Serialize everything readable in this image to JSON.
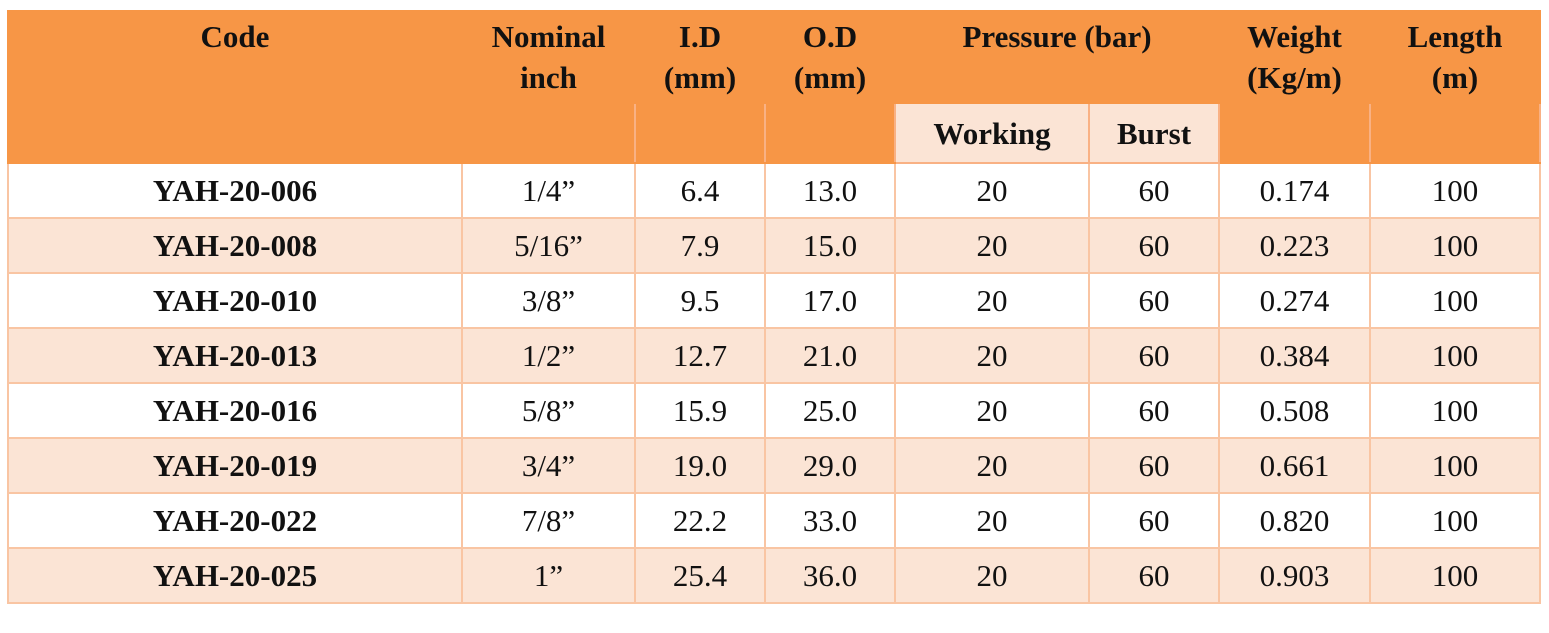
{
  "header": {
    "code": "Code",
    "nominal_1": "Nominal",
    "nominal_2": "inch",
    "id_1": "I.D",
    "id_2": "(mm)",
    "od_1": "O.D",
    "od_2": "(mm)",
    "pressure": "Pressure (bar)",
    "working": "Working",
    "burst": "Burst",
    "weight_1": "Weight",
    "weight_2": "(Kg/m)",
    "length_1": "Length",
    "length_2": "(m)"
  },
  "rows": [
    {
      "code": "YAH-20-006",
      "nominal": "1/4”",
      "id": "6.4",
      "od": "13.0",
      "working": "20",
      "burst": "60",
      "weight": "0.174",
      "length": "100"
    },
    {
      "code": "YAH-20-008",
      "nominal": "5/16”",
      "id": "7.9",
      "od": "15.0",
      "working": "20",
      "burst": "60",
      "weight": "0.223",
      "length": "100"
    },
    {
      "code": "YAH-20-010",
      "nominal": "3/8”",
      "id": "9.5",
      "od": "17.0",
      "working": "20",
      "burst": "60",
      "weight": "0.274",
      "length": "100"
    },
    {
      "code": "YAH-20-013",
      "nominal": "1/2”",
      "id": "12.7",
      "od": "21.0",
      "working": "20",
      "burst": "60",
      "weight": "0.384",
      "length": "100"
    },
    {
      "code": "YAH-20-016",
      "nominal": "5/8”",
      "id": "15.9",
      "od": "25.0",
      "working": "20",
      "burst": "60",
      "weight": "0.508",
      "length": "100"
    },
    {
      "code": "YAH-20-019",
      "nominal": "3/4”",
      "id": "19.0",
      "od": "29.0",
      "working": "20",
      "burst": "60",
      "weight": "0.661",
      "length": "100"
    },
    {
      "code": "YAH-20-022",
      "nominal": "7/8”",
      "id": "22.2",
      "od": "33.0",
      "working": "20",
      "burst": "60",
      "weight": "0.820",
      "length": "100"
    },
    {
      "code": "YAH-20-025",
      "nominal": "1”",
      "id": "25.4",
      "od": "36.0",
      "working": "20",
      "burst": "60",
      "weight": "0.903",
      "length": "100"
    }
  ],
  "colors": {
    "header_bg": "#f79646",
    "alt_row_bg": "#fbe4d5",
    "border": "#f9c5a3"
  }
}
